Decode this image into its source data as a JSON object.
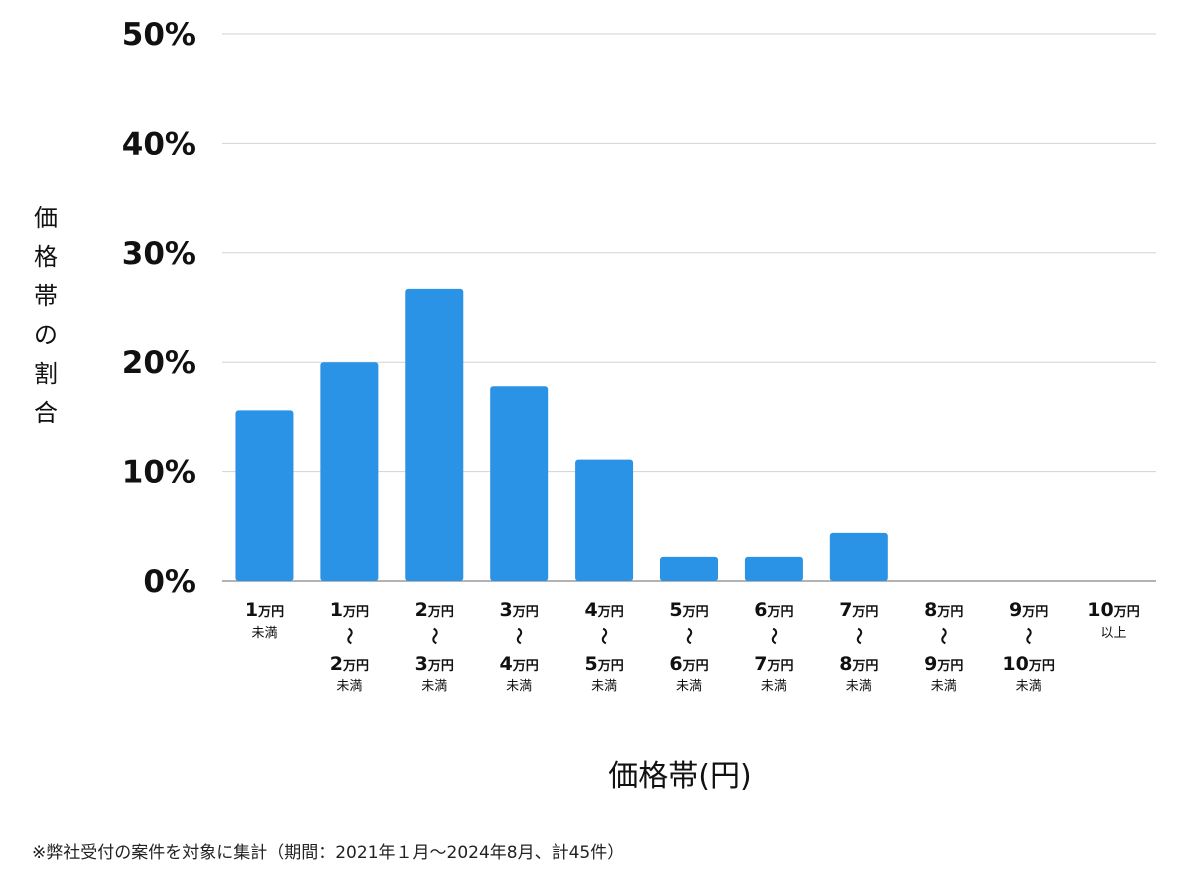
{
  "chart_data": {
    "type": "bar",
    "title": "",
    "xlabel": "価格帯(円)",
    "ylabel": "価格帯の割合",
    "ylim": [
      0,
      50
    ],
    "yticks": [
      "0%",
      "10%",
      "20%",
      "30%",
      "40%",
      "50%"
    ],
    "grid": true,
    "bar_color": "#2B93E6",
    "categories": [
      {
        "lines": [
          "1",
          "万円",
          "未満"
        ],
        "label": "1万円 未満"
      },
      {
        "lines": [
          "1",
          "万円",
          "〜",
          "2",
          "万円",
          "未満"
        ],
        "label": "1万円〜2万円未満"
      },
      {
        "lines": [
          "2",
          "万円",
          "〜",
          "3",
          "万円",
          "未満"
        ],
        "label": "2万円〜3万円未満"
      },
      {
        "lines": [
          "3",
          "万円",
          "〜",
          "4",
          "万円",
          "未満"
        ],
        "label": "3万円〜4万円未満"
      },
      {
        "lines": [
          "4",
          "万円",
          "〜",
          "5",
          "万円",
          "未満"
        ],
        "label": "4万円〜5万円未満"
      },
      {
        "lines": [
          "5",
          "万円",
          "〜",
          "6",
          "万円",
          "未満"
        ],
        "label": "5万円〜6万円未満"
      },
      {
        "lines": [
          "6",
          "万円",
          "〜",
          "7",
          "万円",
          "未満"
        ],
        "label": "6万円〜7万円未満"
      },
      {
        "lines": [
          "7",
          "万円",
          "〜",
          "8",
          "万円",
          "未満"
        ],
        "label": "7万円〜8万円未満"
      },
      {
        "lines": [
          "8",
          "万円",
          "〜",
          "9",
          "万円",
          "未満"
        ],
        "label": "8万円〜9万円未満"
      },
      {
        "lines": [
          "9",
          "万円",
          "〜",
          "10",
          "万円",
          "未満"
        ],
        "label": "9万円〜10万円未満"
      },
      {
        "lines": [
          "10",
          "万円",
          "以上"
        ],
        "label": "10万円 以上"
      }
    ],
    "values": [
      15.6,
      20.0,
      26.7,
      17.8,
      11.1,
      2.2,
      2.2,
      4.4,
      0,
      0,
      0
    ]
  },
  "footnote": "※弊社受付の案件を対象に集計（期間：2021年１月〜2024年8月、計45件）"
}
